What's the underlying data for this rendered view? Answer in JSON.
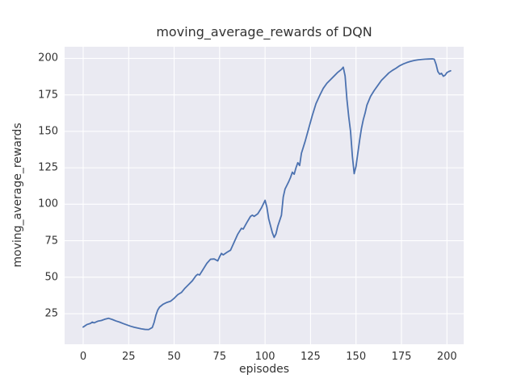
{
  "chart_data": {
    "type": "line",
    "title": "moving_average_rewards of DQN",
    "xlabel": "episodes",
    "ylabel": "moving_average_rewards",
    "xlim": [
      -10.2,
      209.2
    ],
    "ylim": [
      4,
      208
    ],
    "x_ticks": [
      0,
      25,
      50,
      75,
      100,
      125,
      150,
      175,
      200
    ],
    "y_ticks": [
      25,
      50,
      75,
      100,
      125,
      150,
      175,
      200
    ],
    "grid": true,
    "legend": "none",
    "plot_bg_color": "#eaeaf2",
    "grid_color": "#ffffff",
    "line_color": "#4c72b0",
    "line_width": 1.8,
    "series": [
      {
        "name": "DQN moving average reward",
        "x": [
          0,
          2,
          4,
          5,
          6,
          8,
          10,
          12,
          14,
          16,
          18,
          20,
          22,
          24,
          26,
          28,
          30,
          32,
          34,
          36,
          38,
          39,
          40,
          41,
          42,
          44,
          46,
          48,
          50,
          52,
          54,
          56,
          58,
          60,
          62,
          63,
          64,
          66,
          68,
          70,
          72,
          74,
          75,
          76,
          77,
          79,
          81,
          83,
          85,
          87,
          88,
          90,
          92,
          93,
          94,
          96,
          98,
          100,
          101,
          102,
          104,
          105,
          106,
          107,
          109,
          110,
          111,
          112,
          113,
          114,
          115,
          116,
          117,
          118,
          119,
          120,
          122,
          124,
          126,
          128,
          130,
          132,
          134,
          136,
          138,
          140,
          142,
          143,
          144,
          145,
          146,
          147,
          148,
          149,
          150,
          151,
          152,
          153,
          154,
          155,
          156,
          158,
          160,
          162,
          164,
          166,
          168,
          170,
          172,
          174,
          176,
          178,
          180,
          182,
          184,
          186,
          188,
          190,
          192,
          193,
          194,
          195,
          196,
          197,
          198,
          199,
          200,
          201,
          202
        ],
        "y": [
          15.8,
          17.5,
          18.3,
          19.2,
          18.7,
          19.8,
          20.3,
          21.2,
          21.8,
          21.0,
          20.0,
          19.2,
          18.2,
          17.3,
          16.4,
          15.7,
          15.1,
          14.6,
          14.2,
          14.1,
          15.5,
          19.0,
          24.0,
          27.5,
          29.5,
          31.5,
          32.7,
          33.5,
          35.5,
          38.0,
          39.5,
          42.5,
          45.0,
          47.5,
          51.0,
          52.0,
          51.5,
          55.5,
          59.5,
          62.3,
          62.5,
          61.2,
          64.0,
          66.3,
          65.3,
          67.0,
          68.5,
          74.0,
          79.5,
          83.5,
          83.0,
          87.5,
          91.7,
          92.5,
          91.7,
          93.5,
          97.5,
          102.7,
          98.0,
          90.0,
          80.5,
          77.3,
          79.7,
          85.0,
          92.5,
          105.0,
          110.5,
          113.0,
          115.5,
          118.4,
          122.0,
          120.6,
          125.0,
          128.5,
          126.6,
          135.0,
          143.0,
          152.0,
          161.0,
          169.0,
          174.5,
          179.5,
          183.0,
          185.5,
          188.0,
          190.5,
          192.5,
          194.0,
          188.0,
          172.0,
          160.0,
          150.0,
          133.0,
          121.0,
          126.0,
          135.0,
          144.0,
          152.0,
          158.0,
          162.5,
          168.0,
          174.0,
          178.0,
          181.5,
          185.0,
          187.5,
          190.0,
          191.8,
          193.3,
          195.0,
          196.2,
          197.2,
          198.0,
          198.6,
          199.0,
          199.3,
          199.5,
          199.6,
          199.7,
          199.5,
          196.0,
          191.0,
          189.2,
          189.8,
          187.8,
          188.5,
          190.3,
          191.0,
          191.5
        ]
      }
    ]
  }
}
